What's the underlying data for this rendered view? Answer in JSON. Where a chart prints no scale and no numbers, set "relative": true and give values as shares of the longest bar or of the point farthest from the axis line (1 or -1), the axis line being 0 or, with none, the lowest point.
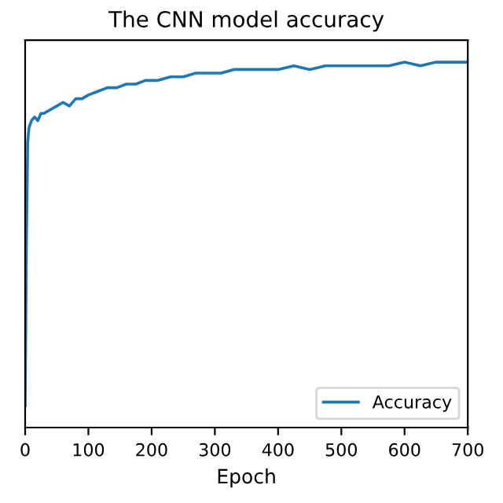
{
  "chart_data": {
    "type": "line",
    "title": "The CNN model accuracy",
    "xlabel": "Epoch",
    "relative": true,
    "xlim": [
      0,
      700
    ],
    "xticks": [
      0,
      100,
      200,
      300,
      400,
      500,
      600,
      700
    ],
    "series": [
      {
        "name": "Accuracy",
        "color": "#1f77b4",
        "x": [
          0,
          2,
          4,
          6,
          10,
          15,
          20,
          25,
          30,
          40,
          50,
          60,
          70,
          80,
          90,
          100,
          115,
          130,
          145,
          160,
          175,
          190,
          210,
          230,
          250,
          270,
          290,
          310,
          330,
          350,
          375,
          400,
          425,
          450,
          475,
          500,
          525,
          550,
          575,
          600,
          625,
          650,
          675,
          700
        ],
        "values": [
          0.06,
          0.5,
          0.78,
          0.82,
          0.84,
          0.85,
          0.84,
          0.86,
          0.86,
          0.87,
          0.88,
          0.89,
          0.88,
          0.9,
          0.9,
          0.91,
          0.92,
          0.93,
          0.93,
          0.94,
          0.94,
          0.95,
          0.95,
          0.96,
          0.96,
          0.97,
          0.97,
          0.97,
          0.98,
          0.98,
          0.98,
          0.98,
          0.99,
          0.98,
          0.99,
          0.99,
          0.99,
          0.99,
          0.99,
          1.0,
          0.99,
          1.0,
          1.0,
          1.0
        ]
      }
    ],
    "legend": "bottom right",
    "grid": false
  }
}
